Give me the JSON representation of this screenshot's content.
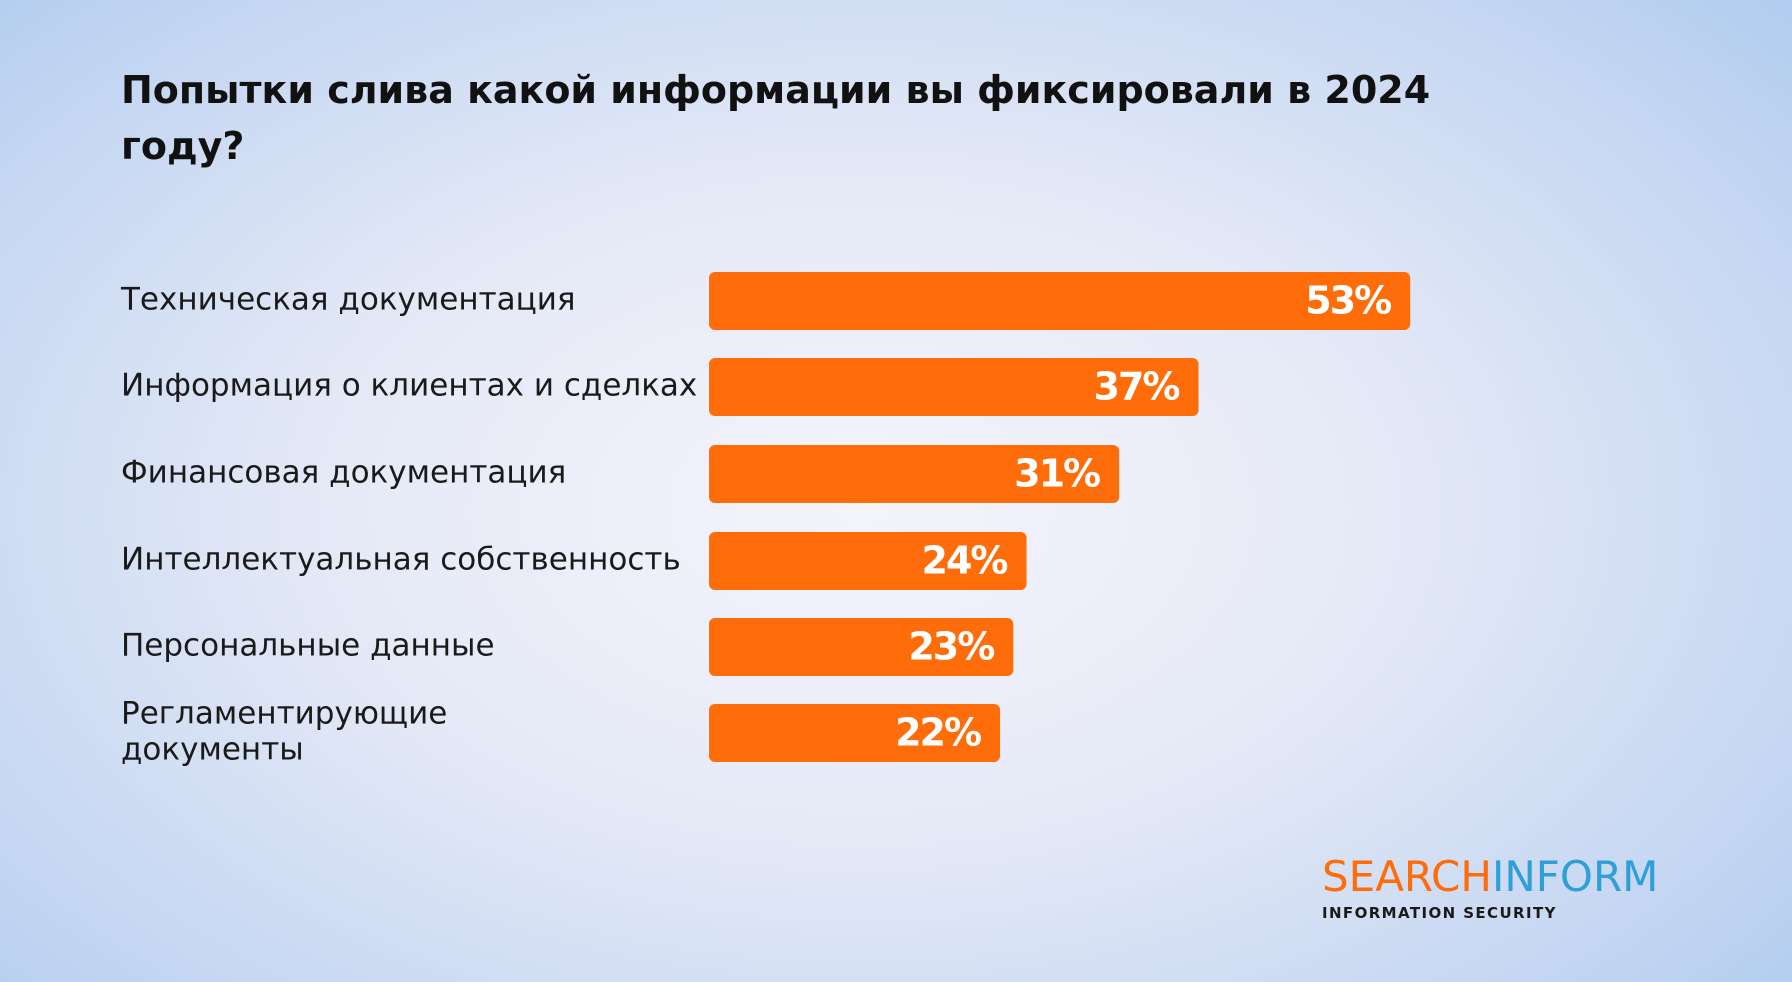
{
  "chart_data": {
    "type": "bar",
    "orientation": "horizontal",
    "title": "Попытки слива какой информации вы фиксировали в 2024 году?",
    "categories": [
      "Техническая документация",
      "Информация о клиентах и сделках",
      "Финансовая документация",
      "Интеллектуальная собственность",
      "Персональные данные",
      "Регламентирующие документы"
    ],
    "category_lines": [
      [
        "Техническая документация"
      ],
      [
        "Информация о клиентах и сделках"
      ],
      [
        "Финансовая документация"
      ],
      [
        "Интеллектуальная собственность"
      ],
      [
        "Персональные данные"
      ],
      [
        "Регламентирующие",
        "документы"
      ]
    ],
    "values": [
      53,
      37,
      31,
      24,
      23,
      22
    ],
    "value_labels": [
      "53%",
      "37%",
      "31%",
      "24%",
      "23%",
      "22%"
    ],
    "unit": "%",
    "bar_color": "#ff6c0a",
    "value_label_color": "#ffffff",
    "grid": false,
    "legend": "none"
  },
  "logo": {
    "brand_part1": "SEARCH",
    "brand_part2": "INFORM",
    "tagline": "INFORMATION SECURITY",
    "color1": "#ff6c0a",
    "color2": "#2f9fd8"
  }
}
